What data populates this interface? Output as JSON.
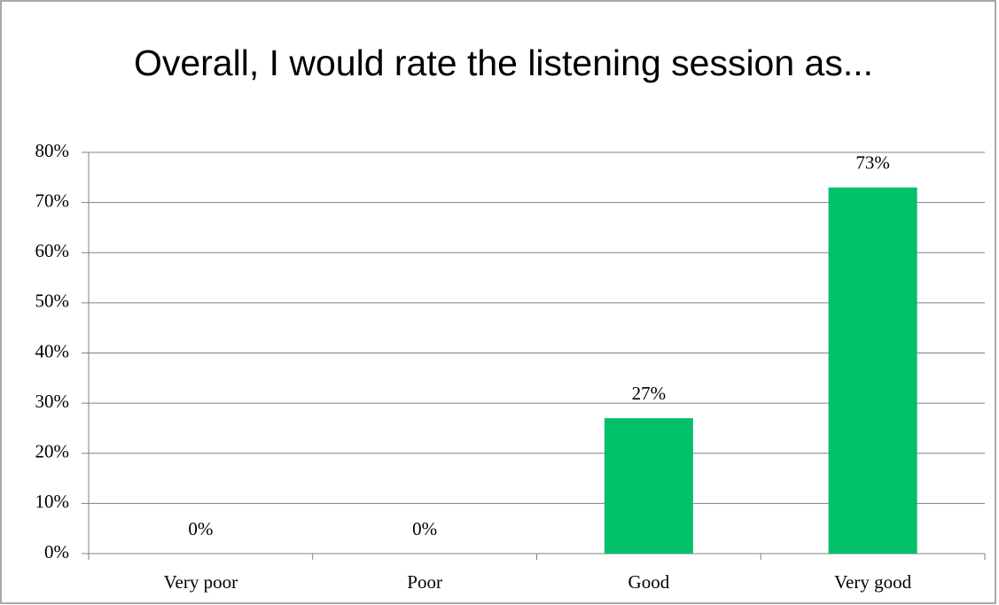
{
  "chart_data": {
    "type": "bar",
    "title": "Overall, I would rate the listening session as...",
    "categories": [
      "Very poor",
      "Poor",
      "Good",
      "Very good"
    ],
    "values": [
      0,
      0,
      27,
      73
    ],
    "value_labels": [
      "0%",
      "0%",
      "27%",
      "73%"
    ],
    "color": "#00c06a",
    "ylim": [
      0,
      80
    ],
    "yticks": [
      {
        "value": 0,
        "label": "0%"
      },
      {
        "value": 10,
        "label": "10%"
      },
      {
        "value": 20,
        "label": "20%"
      },
      {
        "value": 30,
        "label": "30%"
      },
      {
        "value": 40,
        "label": "40%"
      },
      {
        "value": 50,
        "label": "50%"
      },
      {
        "value": 60,
        "label": "60%"
      },
      {
        "value": 70,
        "label": "70%"
      },
      {
        "value": 80,
        "label": "80%"
      }
    ],
    "grid": true
  }
}
